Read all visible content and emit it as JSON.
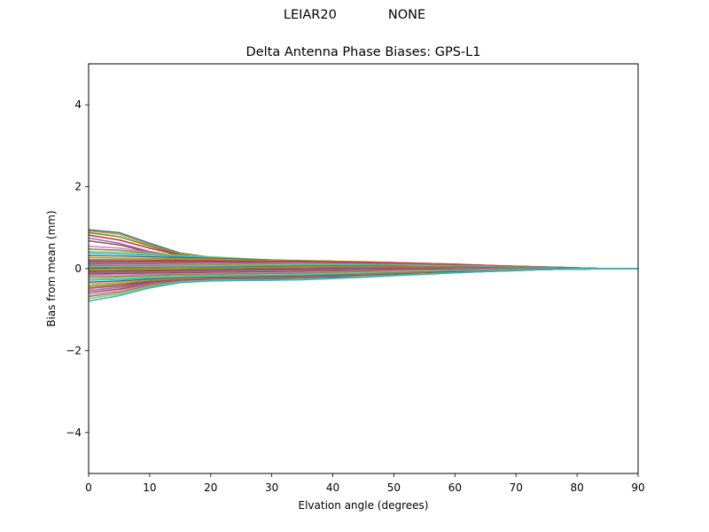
{
  "figure": {
    "suptitle_left": "LEIAR20",
    "suptitle_right": "NONE"
  },
  "chart_data": {
    "type": "line",
    "title": "Delta Antenna Phase Biases: GPS-L1",
    "xlabel": "Elvation angle (degrees)",
    "ylabel": "Bias from mean (mm)",
    "xlim": [
      0,
      90
    ],
    "ylim": [
      -5,
      5
    ],
    "xticks": [
      0,
      10,
      20,
      30,
      40,
      50,
      60,
      70,
      80,
      90
    ],
    "yticks": [
      -4,
      -2,
      0,
      2,
      4
    ],
    "ytick_labels": [
      "−4",
      "−2",
      "0",
      "2",
      "4"
    ],
    "grid": false,
    "legend": "none",
    "x": [
      0,
      5,
      10,
      15,
      20,
      25,
      30,
      35,
      40,
      45,
      50,
      55,
      60,
      65,
      70,
      75,
      80,
      85,
      90
    ],
    "colors": [
      "#1f77b4",
      "#ff7f0e",
      "#2ca02c",
      "#d62728",
      "#9467bd",
      "#8c564b",
      "#e377c2",
      "#7f7f7f",
      "#bcbd22",
      "#17becf"
    ],
    "series": [
      {
        "values": [
          0.95,
          0.88,
          0.62,
          0.38,
          0.28,
          0.22,
          0.18,
          0.15,
          0.13,
          0.12,
          0.1,
          0.08,
          0.07,
          0.05,
          0.04,
          0.02,
          0.01,
          0.0,
          0.0
        ]
      },
      {
        "values": [
          0.92,
          0.84,
          0.58,
          0.36,
          0.27,
          0.21,
          0.17,
          0.14,
          0.12,
          0.11,
          0.09,
          0.08,
          0.06,
          0.05,
          0.03,
          0.02,
          0.01,
          0.0,
          0.0
        ]
      },
      {
        "values": [
          0.88,
          0.78,
          0.55,
          0.34,
          0.26,
          0.2,
          0.16,
          0.13,
          0.12,
          0.1,
          0.09,
          0.07,
          0.06,
          0.04,
          0.03,
          0.02,
          0.01,
          0.0,
          0.0
        ]
      },
      {
        "values": [
          0.82,
          0.7,
          0.5,
          0.33,
          0.25,
          0.19,
          0.15,
          0.13,
          0.11,
          0.1,
          0.08,
          0.07,
          0.05,
          0.04,
          0.03,
          0.02,
          0.01,
          0.0,
          0.0
        ]
      },
      {
        "values": [
          0.75,
          0.62,
          0.42,
          0.3,
          0.24,
          0.18,
          0.14,
          0.12,
          0.1,
          0.09,
          0.08,
          0.06,
          0.05,
          0.04,
          0.03,
          0.02,
          0.01,
          0.0,
          0.0
        ]
      },
      {
        "values": [
          0.68,
          0.58,
          0.4,
          0.28,
          0.22,
          0.17,
          0.13,
          0.11,
          0.1,
          0.08,
          0.07,
          0.06,
          0.05,
          0.04,
          0.03,
          0.02,
          0.01,
          0.0,
          0.0
        ]
      },
      {
        "values": [
          0.55,
          0.5,
          0.4,
          0.32,
          0.27,
          0.22,
          0.18,
          0.16,
          0.14,
          0.12,
          0.11,
          0.09,
          0.07,
          0.06,
          0.04,
          0.03,
          0.01,
          0.0,
          0.0
        ]
      },
      {
        "values": [
          0.48,
          0.45,
          0.38,
          0.33,
          0.28,
          0.23,
          0.19,
          0.17,
          0.15,
          0.13,
          0.11,
          0.09,
          0.08,
          0.06,
          0.04,
          0.03,
          0.02,
          0.0,
          0.0
        ]
      },
      {
        "values": [
          0.42,
          0.4,
          0.36,
          0.32,
          0.29,
          0.25,
          0.21,
          0.19,
          0.17,
          0.15,
          0.13,
          0.11,
          0.09,
          0.07,
          0.05,
          0.03,
          0.02,
          0.0,
          0.0
        ]
      },
      {
        "values": [
          0.38,
          0.36,
          0.33,
          0.3,
          0.27,
          0.24,
          0.21,
          0.2,
          0.18,
          0.16,
          0.14,
          0.12,
          0.1,
          0.07,
          0.05,
          0.03,
          0.02,
          0.0,
          0.0
        ]
      },
      {
        "values": [
          0.32,
          0.31,
          0.29,
          0.27,
          0.25,
          0.23,
          0.21,
          0.19,
          0.18,
          0.16,
          0.15,
          0.13,
          0.11,
          0.08,
          0.06,
          0.04,
          0.02,
          0.0,
          0.0
        ]
      },
      {
        "values": [
          0.27,
          0.26,
          0.25,
          0.24,
          0.23,
          0.21,
          0.2,
          0.19,
          0.18,
          0.17,
          0.15,
          0.13,
          0.11,
          0.08,
          0.06,
          0.04,
          0.02,
          0.0,
          0.0
        ]
      },
      {
        "values": [
          0.22,
          0.22,
          0.21,
          0.21,
          0.2,
          0.19,
          0.18,
          0.18,
          0.17,
          0.16,
          0.14,
          0.12,
          0.1,
          0.08,
          0.06,
          0.04,
          0.02,
          0.0,
          0.0
        ]
      },
      {
        "values": [
          0.18,
          0.18,
          0.18,
          0.18,
          0.18,
          0.17,
          0.17,
          0.17,
          0.16,
          0.15,
          0.14,
          0.12,
          0.1,
          0.08,
          0.05,
          0.03,
          0.02,
          0.0,
          0.0
        ]
      },
      {
        "values": [
          0.15,
          0.15,
          0.15,
          0.15,
          0.15,
          0.15,
          0.15,
          0.15,
          0.14,
          0.13,
          0.12,
          0.11,
          0.09,
          0.07,
          0.05,
          0.03,
          0.01,
          0.0,
          0.0
        ]
      },
      {
        "values": [
          0.12,
          0.12,
          0.12,
          0.13,
          0.13,
          0.14,
          0.14,
          0.14,
          0.13,
          0.12,
          0.11,
          0.1,
          0.08,
          0.06,
          0.05,
          0.03,
          0.01,
          0.0,
          0.0
        ]
      },
      {
        "values": [
          0.1,
          0.1,
          0.1,
          0.11,
          0.12,
          0.12,
          0.13,
          0.13,
          0.12,
          0.11,
          0.1,
          0.09,
          0.07,
          0.06,
          0.04,
          0.03,
          0.01,
          0.0,
          0.0
        ]
      },
      {
        "values": [
          0.08,
          0.07,
          0.07,
          0.08,
          0.09,
          0.1,
          0.11,
          0.11,
          0.11,
          0.1,
          0.09,
          0.08,
          0.07,
          0.05,
          0.04,
          0.02,
          0.01,
          0.0,
          0.0
        ]
      },
      {
        "values": [
          0.05,
          0.05,
          0.05,
          0.06,
          0.07,
          0.08,
          0.09,
          0.1,
          0.1,
          0.09,
          0.08,
          0.07,
          0.06,
          0.05,
          0.03,
          0.02,
          0.01,
          0.0,
          0.0
        ]
      },
      {
        "values": [
          0.03,
          0.03,
          0.03,
          0.04,
          0.05,
          0.06,
          0.07,
          0.08,
          0.08,
          0.08,
          0.07,
          0.06,
          0.05,
          0.04,
          0.03,
          0.02,
          0.01,
          0.0,
          0.0
        ]
      },
      {
        "values": [
          0.01,
          0.02,
          0.02,
          0.02,
          0.03,
          0.04,
          0.05,
          0.06,
          0.06,
          0.06,
          0.06,
          0.05,
          0.04,
          0.03,
          0.02,
          0.01,
          0.01,
          0.0,
          0.0
        ]
      },
      {
        "values": [
          -0.02,
          -0.01,
          0.0,
          0.01,
          0.01,
          0.02,
          0.03,
          0.04,
          0.04,
          0.04,
          0.04,
          0.04,
          0.03,
          0.02,
          0.02,
          0.01,
          0.0,
          0.0,
          0.0
        ]
      },
      {
        "values": [
          -0.05,
          -0.04,
          -0.03,
          -0.02,
          -0.01,
          0.0,
          0.01,
          0.01,
          0.02,
          0.02,
          0.02,
          0.02,
          0.02,
          0.01,
          0.01,
          0.0,
          0.0,
          0.0,
          0.0
        ]
      },
      {
        "values": [
          -0.08,
          -0.07,
          -0.06,
          -0.05,
          -0.04,
          -0.03,
          -0.02,
          -0.01,
          0.0,
          0.0,
          0.01,
          0.01,
          0.01,
          0.01,
          0.0,
          0.0,
          0.0,
          0.0,
          0.0
        ]
      },
      {
        "values": [
          -0.1,
          -0.09,
          -0.08,
          -0.07,
          -0.06,
          -0.05,
          -0.04,
          -0.03,
          -0.02,
          -0.01,
          -0.01,
          0.0,
          0.0,
          0.0,
          0.0,
          0.0,
          0.0,
          0.0,
          0.0
        ]
      },
      {
        "values": [
          -0.13,
          -0.12,
          -0.11,
          -0.1,
          -0.09,
          -0.08,
          -0.07,
          -0.06,
          -0.05,
          -0.04,
          -0.03,
          -0.02,
          -0.02,
          -0.01,
          -0.01,
          0.0,
          0.0,
          0.0,
          0.0
        ]
      },
      {
        "values": [
          -0.16,
          -0.15,
          -0.14,
          -0.13,
          -0.12,
          -0.11,
          -0.1,
          -0.09,
          -0.08,
          -0.07,
          -0.05,
          -0.04,
          -0.03,
          -0.02,
          -0.01,
          -0.01,
          0.0,
          0.0,
          0.0
        ]
      },
      {
        "values": [
          -0.2,
          -0.19,
          -0.17,
          -0.15,
          -0.14,
          -0.13,
          -0.12,
          -0.11,
          -0.1,
          -0.08,
          -0.07,
          -0.05,
          -0.04,
          -0.03,
          -0.02,
          -0.01,
          0.0,
          0.0,
          0.0
        ]
      },
      {
        "values": [
          -0.24,
          -0.22,
          -0.2,
          -0.18,
          -0.17,
          -0.16,
          -0.15,
          -0.14,
          -0.12,
          -0.1,
          -0.08,
          -0.06,
          -0.05,
          -0.03,
          -0.02,
          -0.01,
          0.0,
          0.0,
          0.0
        ]
      },
      {
        "values": [
          -0.28,
          -0.26,
          -0.23,
          -0.21,
          -0.19,
          -0.18,
          -0.17,
          -0.16,
          -0.14,
          -0.12,
          -0.1,
          -0.08,
          -0.06,
          -0.04,
          -0.03,
          -0.01,
          0.0,
          0.0,
          0.0
        ]
      },
      {
        "values": [
          -0.33,
          -0.3,
          -0.26,
          -0.23,
          -0.21,
          -0.2,
          -0.19,
          -0.18,
          -0.16,
          -0.14,
          -0.11,
          -0.09,
          -0.07,
          -0.05,
          -0.03,
          -0.02,
          -0.01,
          0.0,
          0.0
        ]
      },
      {
        "values": [
          -0.38,
          -0.34,
          -0.29,
          -0.25,
          -0.23,
          -0.22,
          -0.21,
          -0.2,
          -0.18,
          -0.15,
          -0.12,
          -0.1,
          -0.08,
          -0.05,
          -0.03,
          -0.02,
          -0.01,
          0.0,
          0.0
        ]
      },
      {
        "values": [
          -0.43,
          -0.38,
          -0.31,
          -0.27,
          -0.24,
          -0.23,
          -0.22,
          -0.21,
          -0.19,
          -0.16,
          -0.13,
          -0.11,
          -0.08,
          -0.06,
          -0.04,
          -0.02,
          -0.01,
          0.0,
          0.0
        ]
      },
      {
        "values": [
          -0.48,
          -0.42,
          -0.33,
          -0.28,
          -0.25,
          -0.24,
          -0.23,
          -0.22,
          -0.2,
          -0.17,
          -0.14,
          -0.11,
          -0.09,
          -0.06,
          -0.04,
          -0.02,
          -0.01,
          0.0,
          0.0
        ]
      },
      {
        "values": [
          -0.53,
          -0.46,
          -0.35,
          -0.29,
          -0.26,
          -0.25,
          -0.24,
          -0.23,
          -0.21,
          -0.18,
          -0.15,
          -0.12,
          -0.09,
          -0.06,
          -0.04,
          -0.02,
          -0.01,
          0.0,
          0.0
        ]
      },
      {
        "values": [
          -0.58,
          -0.5,
          -0.37,
          -0.3,
          -0.27,
          -0.26,
          -0.26,
          -0.24,
          -0.22,
          -0.19,
          -0.15,
          -0.12,
          -0.09,
          -0.07,
          -0.04,
          -0.02,
          -0.01,
          0.0,
          0.0
        ]
      },
      {
        "values": [
          -0.63,
          -0.54,
          -0.39,
          -0.31,
          -0.28,
          -0.27,
          -0.27,
          -0.25,
          -0.23,
          -0.19,
          -0.16,
          -0.13,
          -0.1,
          -0.07,
          -0.04,
          -0.02,
          -0.01,
          0.0,
          0.0
        ]
      },
      {
        "values": [
          -0.68,
          -0.58,
          -0.41,
          -0.32,
          -0.29,
          -0.28,
          -0.27,
          -0.26,
          -0.23,
          -0.2,
          -0.16,
          -0.13,
          -0.1,
          -0.07,
          -0.04,
          -0.02,
          -0.01,
          0.0,
          0.0
        ]
      },
      {
        "values": [
          -0.73,
          -0.62,
          -0.44,
          -0.33,
          -0.29,
          -0.28,
          -0.28,
          -0.26,
          -0.24,
          -0.2,
          -0.17,
          -0.13,
          -0.1,
          -0.07,
          -0.05,
          -0.02,
          -0.01,
          0.0,
          0.0
        ]
      },
      {
        "values": [
          -0.79,
          -0.66,
          -0.47,
          -0.34,
          -0.3,
          -0.29,
          -0.28,
          -0.27,
          -0.24,
          -0.21,
          -0.17,
          -0.14,
          -0.1,
          -0.07,
          -0.05,
          -0.02,
          -0.01,
          0.0,
          0.0
        ]
      }
    ]
  }
}
